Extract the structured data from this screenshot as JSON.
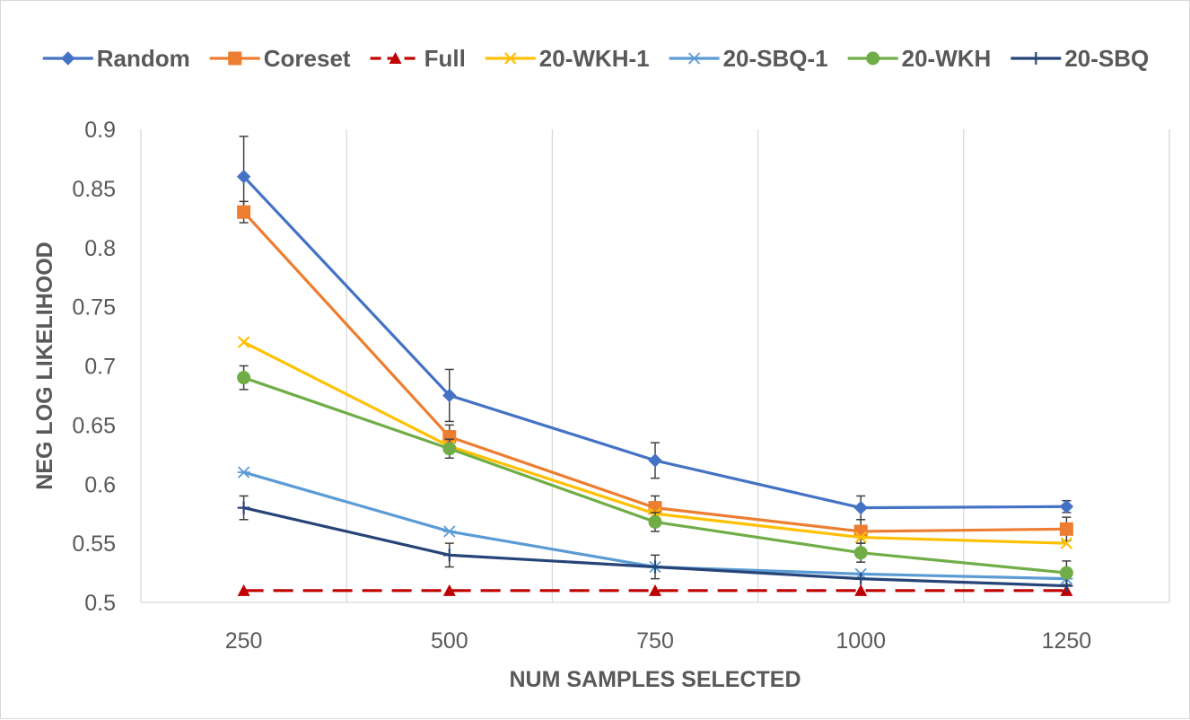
{
  "chart_data": {
    "type": "line",
    "title": "",
    "xlabel": "NUM SAMPLES SELECTED",
    "ylabel": "NEG  LOG  LIKELIHOOD",
    "x": [
      250,
      500,
      750,
      1000,
      1250
    ],
    "x_tick_labels": [
      "250",
      "500",
      "750",
      "1000",
      "1250"
    ],
    "ylim": [
      0.5,
      0.9
    ],
    "y_ticks": [
      0.5,
      0.55,
      0.6,
      0.65,
      0.7,
      0.75,
      0.8,
      0.85,
      0.9
    ],
    "y_tick_labels": [
      "0.5",
      "0.55",
      "0.6",
      "0.65",
      "0.7",
      "0.75",
      "0.8",
      "0.85",
      "0.9"
    ],
    "grid": "vertical",
    "legend_position": "top",
    "series": [
      {
        "name": "Random",
        "color": "#4472c4",
        "marker": "diamond",
        "dashed": false,
        "values": [
          0.86,
          0.675,
          0.62,
          0.58,
          0.581
        ],
        "errors": [
          0.034,
          0.022,
          0.015,
          0.01,
          0.005
        ]
      },
      {
        "name": "Coreset",
        "color": "#ed7d31",
        "marker": "square",
        "dashed": false,
        "values": [
          0.83,
          0.64,
          0.58,
          0.56,
          0.562
        ],
        "errors": [
          0.009,
          0.01,
          0.01,
          0.01,
          0.01
        ]
      },
      {
        "name": "Full",
        "color": "#c00000",
        "marker": "triangle",
        "dashed": true,
        "values": [
          0.51,
          0.51,
          0.51,
          0.51,
          0.51
        ],
        "errors": [
          0,
          0,
          0,
          0,
          0
        ]
      },
      {
        "name": "20-WKH-1",
        "color": "#ffc000",
        "marker": "x",
        "dashed": false,
        "values": [
          0.72,
          0.632,
          0.575,
          0.555,
          0.55
        ],
        "errors": [
          0,
          0,
          0,
          0,
          0
        ]
      },
      {
        "name": "20-SBQ-1",
        "color": "#5b9bd5",
        "marker": "asterisk",
        "dashed": false,
        "values": [
          0.61,
          0.56,
          0.53,
          0.524,
          0.52
        ],
        "errors": [
          0,
          0,
          0,
          0,
          0
        ]
      },
      {
        "name": "20-WKH",
        "color": "#70ad47",
        "marker": "circle",
        "dashed": false,
        "values": [
          0.69,
          0.63,
          0.568,
          0.542,
          0.525
        ],
        "errors": [
          0.01,
          0.008,
          0.008,
          0.008,
          0.01
        ]
      },
      {
        "name": "20-SBQ",
        "color": "#264478",
        "marker": "plus",
        "dashed": false,
        "values": [
          0.58,
          0.54,
          0.53,
          0.52,
          0.514
        ],
        "errors": [
          0.01,
          0.01,
          0.01,
          0,
          0
        ]
      }
    ]
  }
}
